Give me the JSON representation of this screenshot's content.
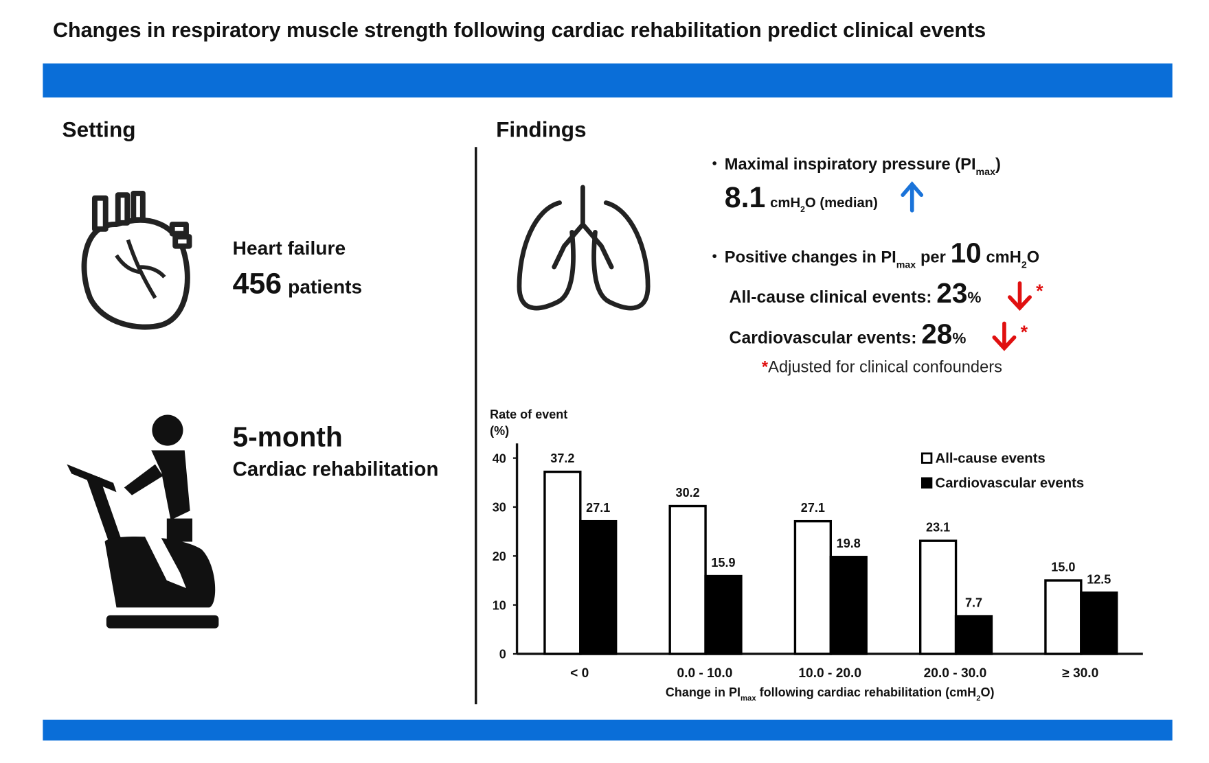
{
  "title": "Changes in respiratory muscle strength following cardiac rehabilitation predict clinical events",
  "setting": {
    "heading": "Setting",
    "condition": "Heart failure",
    "patients": 456,
    "patients_label": "patients",
    "duration": "5-month",
    "program": "Cardiac rehabilitation"
  },
  "findings": {
    "heading": "Findings",
    "mip": {
      "label": "Maximal inspiratory pressure (PI",
      "label_sub": "max",
      "label_end": ")",
      "value": 8.1,
      "unit": "cmH",
      "unit_sub": "2",
      "unit_end": "O (median)"
    },
    "per_change": {
      "label": "Positive changes in PI",
      "label_sub": "max",
      "label_mid": "per",
      "value": 10,
      "unit": "cmH",
      "unit_sub": "2",
      "unit_end": "O"
    },
    "events": [
      {
        "label": "All-cause clinical events:",
        "value": 23,
        "unit": "%",
        "mark": "*"
      },
      {
        "label": "Cardiovascular events:",
        "value": 28,
        "unit": "%",
        "mark": "*"
      }
    ],
    "footnote": {
      "mark": "*",
      "text": "Adjusted for clinical confounders"
    }
  },
  "chart_data": {
    "type": "bar",
    "ylabel": [
      "Rate of event",
      "(%)"
    ],
    "xlabel": [
      "Change in PI",
      "max",
      " following cardiac rehabilitation (cmH",
      "2",
      "O)"
    ],
    "categories": [
      "< 0",
      "0.0 - 10.0",
      "10.0 - 20.0",
      "20.0 - 30.0",
      "≥ 30.0"
    ],
    "series": [
      {
        "name": "All-cause events",
        "color": "#ffffff",
        "values": [
          37.2,
          30.2,
          27.1,
          23.1,
          15.0
        ],
        "value_labels": [
          "37.2",
          "30.2",
          "27.1",
          "23.1",
          "15.0"
        ]
      },
      {
        "name": "Cardiovascular events",
        "color": "#000000",
        "values": [
          27.1,
          15.9,
          19.8,
          7.7,
          12.5
        ],
        "value_labels": [
          "27.1",
          "15.9",
          "19.8",
          "7.7",
          "12.5"
        ]
      }
    ],
    "ylim": [
      0,
      43
    ],
    "yticks": [
      0,
      10,
      20,
      30,
      40
    ],
    "grid": false,
    "legend": "upper right"
  }
}
